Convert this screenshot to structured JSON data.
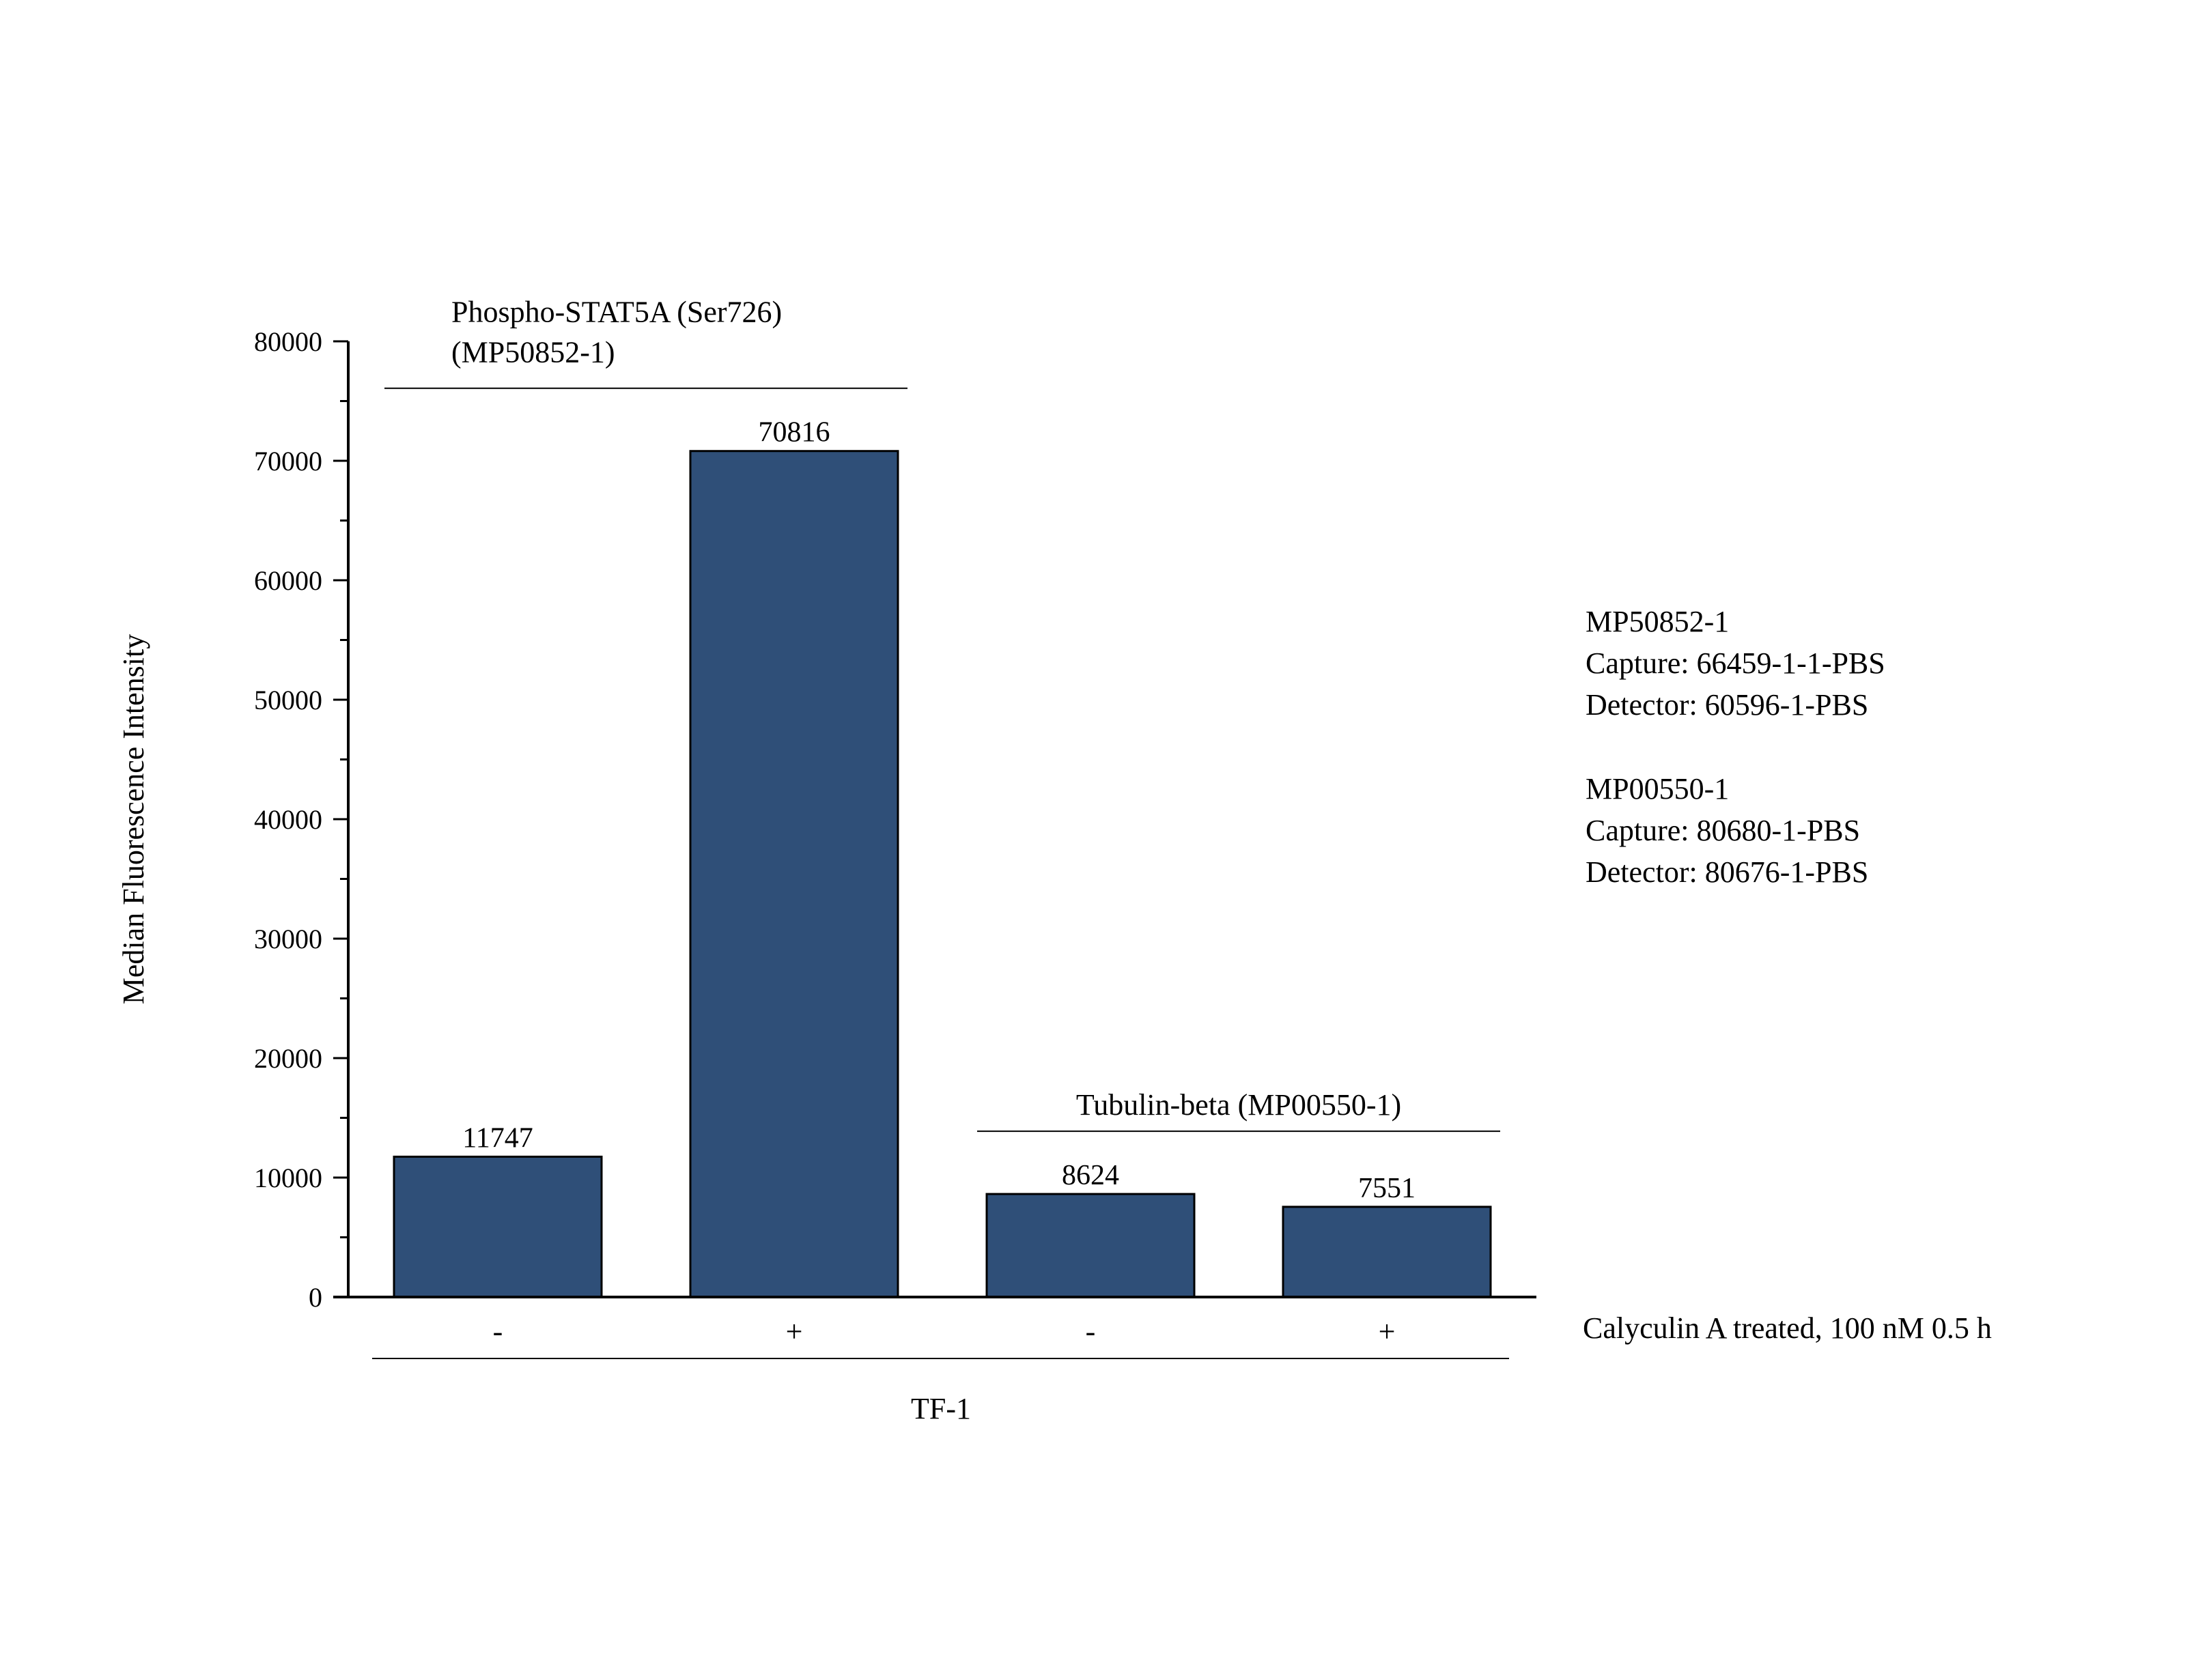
{
  "chart_data": {
    "type": "bar",
    "categories": [
      "-",
      "+",
      "-",
      "+"
    ],
    "values": [
      11747,
      70816,
      8624,
      7551
    ],
    "data_labels": [
      "11747",
      "70816",
      "8624",
      "7551"
    ],
    "bar_color": "#2f4f78",
    "title": "",
    "xlabel": "TF-1",
    "ylabel": "Median Fluorescence Intensity",
    "ylim": [
      0,
      80000
    ],
    "yticks": [
      "0",
      "10000",
      "20000",
      "30000",
      "40000",
      "50000",
      "60000",
      "70000",
      "80000"
    ],
    "minor_ticks_per_interval": 1,
    "treatment_label": "Calyculin A treated, 100 nM 0.5 h",
    "groups": [
      {
        "line1": "Phospho-STAT5A (Ser726)",
        "line2": "(MP50852-1)",
        "bars": [
          0,
          1
        ]
      },
      {
        "line1": "Tubulin-beta (MP00550-1)",
        "line2": "",
        "bars": [
          2,
          3
        ]
      }
    ],
    "grid": false,
    "legend": "none"
  },
  "info": {
    "block1": [
      "MP50852-1",
      "Capture: 66459-1-1-PBS",
      "Detector: 60596-1-PBS"
    ],
    "block2": [
      "MP00550-1",
      "Capture: 80680-1-PBS",
      "Detector: 80676-1-PBS"
    ]
  }
}
